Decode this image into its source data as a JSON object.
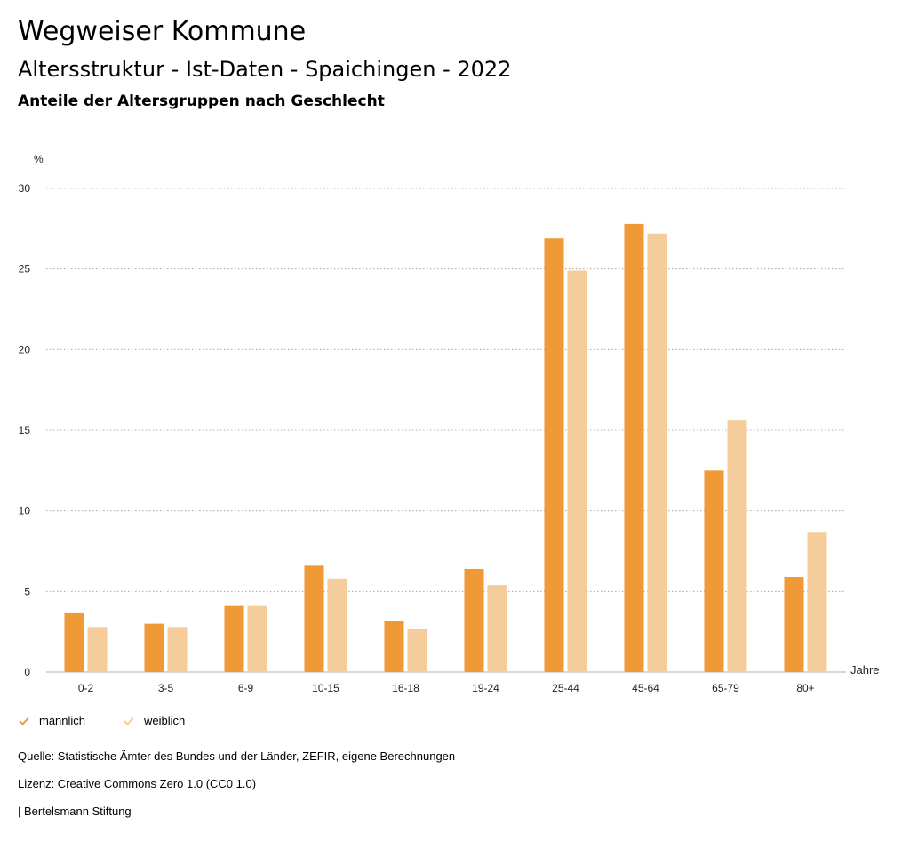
{
  "header": {
    "app_title": "Wegweiser Kommune",
    "title": "Altersstruktur - Ist-Daten - Spaichingen - 2022",
    "subtitle": "Anteile der Altersgruppen nach Geschlecht"
  },
  "chart_data": {
    "type": "bar",
    "ylabel": "%",
    "xlabel": "Jahre",
    "ylim": [
      0,
      30
    ],
    "yticks": [
      0,
      5,
      10,
      15,
      20,
      25,
      30
    ],
    "grid": true,
    "legend_position": "bottom-left",
    "categories": [
      "0-2",
      "3-5",
      "6-9",
      "10-15",
      "16-18",
      "19-24",
      "25-44",
      "45-64",
      "65-79",
      "80+"
    ],
    "series": [
      {
        "name": "männlich",
        "color": "#ef9a36",
        "values": [
          3.7,
          3.0,
          4.1,
          6.6,
          3.2,
          6.4,
          26.9,
          27.8,
          12.5,
          5.9
        ]
      },
      {
        "name": "weiblich",
        "color": "#f5cc9b",
        "values": [
          2.8,
          2.8,
          4.1,
          5.8,
          2.7,
          5.4,
          24.9,
          27.2,
          15.6,
          8.7
        ]
      }
    ]
  },
  "footer": {
    "source": "Quelle: Statistische Ämter des Bundes und der Länder, ZEFIR, eigene Berechnungen",
    "license": "Lizenz: Creative Commons Zero 1.0 (CC0 1.0)",
    "brand": "| Bertelsmann Stiftung"
  }
}
